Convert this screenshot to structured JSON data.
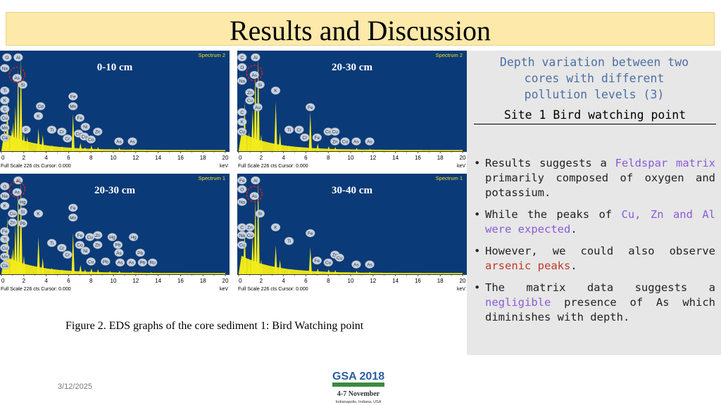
{
  "slide": {
    "title": "Results and Discussion",
    "date": "3/12/2025",
    "figure_caption": "Figure 2. EDS graphs of the core sediment 1: Bird Watching point"
  },
  "right_panel": {
    "heading_lines": [
      "Depth variation between two",
      "cores with different",
      "pollution levels (3)"
    ],
    "site": "Site 1 Bird watching point",
    "bullets": [
      {
        "segments": [
          {
            "text": "Results suggests a ",
            "style": "normal"
          },
          {
            "text": "Feldspar matrix",
            "style": "purple"
          },
          {
            "text": " primarily composed of oxygen and potassium.",
            "style": "normal"
          }
        ]
      },
      {
        "segments": [
          {
            "text": "While the peaks of ",
            "style": "normal"
          },
          {
            "text": "Cu, Zn and Al were expected",
            "style": "purple"
          },
          {
            "text": ".",
            "style": "normal"
          }
        ]
      },
      {
        "segments": [
          {
            "text": "However, we could also observe ",
            "style": "normal"
          },
          {
            "text": "arsenic peaks",
            "style": "red"
          },
          {
            "text": ".",
            "style": "normal"
          }
        ]
      },
      {
        "segments": [
          {
            "text": "The matrix data suggests a ",
            "style": "normal"
          },
          {
            "text": "negligible",
            "style": "purple"
          },
          {
            "text": " presence of As which diminishes with depth.",
            "style": "normal"
          }
        ]
      }
    ],
    "colors": {
      "purple": "#8a5bd6",
      "red": "#c0392b",
      "heading": "#4a6fa5"
    }
  },
  "logo": {
    "line1": "GSA 2018",
    "line2": "4-7 November",
    "line3": "Indianapolis, Indiana, USA",
    "color_green": "#3b8a3e",
    "color_blue": "#2b5f9e"
  },
  "chart_data": [
    {
      "type": "line",
      "title": "0-10 cm",
      "spectrum_label": "Spectrum 2",
      "xlabel": "keV",
      "footer": "Full Scale 226 cts Cursor: 0.000",
      "xlim": [
        0,
        20
      ],
      "x_ticks": [
        0,
        2,
        4,
        6,
        8,
        10,
        12,
        14,
        16,
        18,
        20
      ],
      "ylim": [
        0,
        226
      ],
      "peaks": [
        {
          "x": 0.28,
          "y": 60
        },
        {
          "x": 0.53,
          "y": 130
        },
        {
          "x": 0.93,
          "y": 55
        },
        {
          "x": 1.04,
          "y": 70
        },
        {
          "x": 1.25,
          "y": 110
        },
        {
          "x": 1.49,
          "y": 200
        },
        {
          "x": 1.74,
          "y": 226
        },
        {
          "x": 2.01,
          "y": 45
        },
        {
          "x": 2.31,
          "y": 35
        },
        {
          "x": 3.31,
          "y": 55
        },
        {
          "x": 3.69,
          "y": 40
        },
        {
          "x": 4.51,
          "y": 15
        },
        {
          "x": 5.41,
          "y": 12
        },
        {
          "x": 6.4,
          "y": 90
        },
        {
          "x": 7.06,
          "y": 20
        },
        {
          "x": 7.47,
          "y": 10
        },
        {
          "x": 8.04,
          "y": 14
        },
        {
          "x": 8.63,
          "y": 10
        },
        {
          "x": 10.54,
          "y": 8
        },
        {
          "x": 11.73,
          "y": 6
        }
      ],
      "element_labels": [
        {
          "text": "O",
          "x": 0.5,
          "level": 0.96
        },
        {
          "text": "Al",
          "x": 1.5,
          "level": 0.96
        },
        {
          "text": "Na",
          "x": 0.3,
          "level": 0.85
        },
        {
          "text": "As",
          "x": 1.4,
          "level": 0.75
        },
        {
          "text": "Si",
          "x": 1.9,
          "level": 0.68
        },
        {
          "text": "Ti",
          "x": 0.3,
          "level": 0.62
        },
        {
          "text": "K",
          "x": 0.3,
          "level": 0.52
        },
        {
          "text": "C",
          "x": 0.3,
          "level": 0.43
        },
        {
          "text": "Cu",
          "x": 0.3,
          "level": 0.34
        },
        {
          "text": "Mn",
          "x": 0.3,
          "level": 0.24
        },
        {
          "text": "Ca",
          "x": 0.3,
          "level": 0.14
        },
        {
          "text": "Cd",
          "x": 3.5,
          "level": 0.46
        },
        {
          "text": "K",
          "x": 3.3,
          "level": 0.36
        },
        {
          "text": "P",
          "x": 2.2,
          "level": 0.22
        },
        {
          "text": "Fe",
          "x": 6.4,
          "level": 0.56
        },
        {
          "text": "Mn",
          "x": 6.4,
          "level": 0.46
        },
        {
          "text": "Fe",
          "x": 7.0,
          "level": 0.34
        },
        {
          "text": "Ni",
          "x": 7.5,
          "level": 0.25
        },
        {
          "text": "Ti",
          "x": 4.5,
          "level": 0.22
        },
        {
          "text": "Cr",
          "x": 5.4,
          "level": 0.2
        },
        {
          "text": "Co",
          "x": 6.9,
          "level": 0.18
        },
        {
          "text": "Cu",
          "x": 7.4,
          "level": 0.15
        },
        {
          "text": "Cr",
          "x": 5.9,
          "level": 0.13
        },
        {
          "text": "Zn",
          "x": 8.6,
          "level": 0.2
        },
        {
          "text": "Cu",
          "x": 8.0,
          "level": 0.12
        },
        {
          "text": "As",
          "x": 10.5,
          "level": 0.1
        },
        {
          "text": "As",
          "x": 11.7,
          "level": 0.1
        }
      ],
      "circled_marker": {
        "x": 1.4,
        "level": 0.78
      }
    },
    {
      "type": "line",
      "title": "20-30 cm",
      "spectrum_label": "Spectrum 2",
      "xlabel": "keV",
      "footer": "Full Scale 226 cts Cursor: 0.000",
      "xlim": [
        0,
        20
      ],
      "x_ticks": [
        0,
        2,
        4,
        6,
        8,
        10,
        12,
        14,
        16,
        18,
        20
      ],
      "ylim": [
        0,
        226
      ],
      "peaks": [
        {
          "x": 0.28,
          "y": 50
        },
        {
          "x": 0.53,
          "y": 120
        },
        {
          "x": 0.93,
          "y": 45
        },
        {
          "x": 1.25,
          "y": 100
        },
        {
          "x": 1.49,
          "y": 190
        },
        {
          "x": 1.74,
          "y": 226
        },
        {
          "x": 2.01,
          "y": 40
        },
        {
          "x": 3.31,
          "y": 120
        },
        {
          "x": 3.69,
          "y": 45
        },
        {
          "x": 4.51,
          "y": 14
        },
        {
          "x": 5.41,
          "y": 10
        },
        {
          "x": 6.4,
          "y": 95
        },
        {
          "x": 7.06,
          "y": 18
        },
        {
          "x": 8.04,
          "y": 12
        },
        {
          "x": 8.63,
          "y": 10
        },
        {
          "x": 10.54,
          "y": 8
        },
        {
          "x": 11.73,
          "y": 6
        }
      ],
      "element_labels": [
        {
          "text": "C",
          "x": 0.3,
          "level": 0.96
        },
        {
          "text": "Al",
          "x": 1.5,
          "level": 0.96
        },
        {
          "text": "O",
          "x": 0.3,
          "level": 0.86
        },
        {
          "text": "As",
          "x": 1.4,
          "level": 0.78
        },
        {
          "text": "Na",
          "x": 0.3,
          "level": 0.72
        },
        {
          "text": "Si",
          "x": 1.9,
          "level": 0.68
        },
        {
          "text": "Zn",
          "x": 1.0,
          "level": 0.6
        },
        {
          "text": "Cu",
          "x": 1.0,
          "level": 0.52
        },
        {
          "text": "Au",
          "x": 1.7,
          "level": 0.45
        },
        {
          "text": "K",
          "x": 3.3,
          "level": 0.62
        },
        {
          "text": "Fe",
          "x": 6.4,
          "level": 0.45
        },
        {
          "text": "C",
          "x": 0.3,
          "level": 0.4
        },
        {
          "text": "K",
          "x": 0.3,
          "level": 0.3
        },
        {
          "text": "Cu",
          "x": 0.3,
          "level": 0.2
        },
        {
          "text": "Ti",
          "x": 4.5,
          "level": 0.22
        },
        {
          "text": "Cr",
          "x": 5.4,
          "level": 0.22
        },
        {
          "text": "Co",
          "x": 8.0,
          "level": 0.2
        },
        {
          "text": "Cr",
          "x": 5.9,
          "level": 0.14
        },
        {
          "text": "Fe",
          "x": 7.0,
          "level": 0.14
        },
        {
          "text": "Cu",
          "x": 8.6,
          "level": 0.2
        },
        {
          "text": "Zn",
          "x": 8.6,
          "level": 0.1
        },
        {
          "text": "Cu",
          "x": 9.5,
          "level": 0.1
        },
        {
          "text": "As",
          "x": 10.5,
          "level": 0.1
        },
        {
          "text": "As",
          "x": 11.7,
          "level": 0.1
        }
      ],
      "circled_marker": {
        "x": 1.4,
        "level": 0.8
      }
    },
    {
      "type": "line",
      "title": "20-30 cm",
      "spectrum_label": "Spectrum 1",
      "xlabel": "keV",
      "footer": "Full Scale 226 cts Cursor: 0.000",
      "xlim": [
        0,
        20
      ],
      "x_ticks": [
        0,
        2,
        4,
        6,
        8,
        10,
        12,
        14,
        16,
        18,
        20
      ],
      "ylim": [
        0,
        226
      ],
      "peaks": [
        {
          "x": 0.28,
          "y": 55
        },
        {
          "x": 0.53,
          "y": 140
        },
        {
          "x": 0.93,
          "y": 50
        },
        {
          "x": 1.04,
          "y": 65
        },
        {
          "x": 1.25,
          "y": 120
        },
        {
          "x": 1.49,
          "y": 210
        },
        {
          "x": 1.74,
          "y": 226
        },
        {
          "x": 2.01,
          "y": 45
        },
        {
          "x": 3.31,
          "y": 90
        },
        {
          "x": 3.69,
          "y": 40
        },
        {
          "x": 4.51,
          "y": 16
        },
        {
          "x": 5.41,
          "y": 12
        },
        {
          "x": 6.4,
          "y": 100
        },
        {
          "x": 7.06,
          "y": 22
        },
        {
          "x": 7.47,
          "y": 12
        },
        {
          "x": 8.04,
          "y": 14
        },
        {
          "x": 8.63,
          "y": 12
        },
        {
          "x": 9.71,
          "y": 8
        },
        {
          "x": 10.54,
          "y": 8
        },
        {
          "x": 11.73,
          "y": 6
        },
        {
          "x": 13.39,
          "y": 5
        }
      ],
      "element_labels": [
        {
          "text": "Al",
          "x": 1.5,
          "level": 0.96
        },
        {
          "text": "O",
          "x": 0.3,
          "level": 0.9
        },
        {
          "text": "Na",
          "x": 0.3,
          "level": 0.8
        },
        {
          "text": "As",
          "x": 1.4,
          "level": 0.84
        },
        {
          "text": "K",
          "x": 0.3,
          "level": 0.7
        },
        {
          "text": "Hg",
          "x": 1.9,
          "level": 0.74
        },
        {
          "text": "Cu",
          "x": 1.0,
          "level": 0.62
        },
        {
          "text": "Si",
          "x": 1.9,
          "level": 0.64
        },
        {
          "text": "Zn",
          "x": 1.0,
          "level": 0.53
        },
        {
          "text": "Pb",
          "x": 1.9,
          "level": 0.52
        },
        {
          "text": "K",
          "x": 3.3,
          "level": 0.62
        },
        {
          "text": "Fe",
          "x": 6.4,
          "level": 0.68
        },
        {
          "text": "Mn",
          "x": 6.4,
          "level": 0.58
        },
        {
          "text": "Fe",
          "x": 0.3,
          "level": 0.44
        },
        {
          "text": "Ti",
          "x": 0.3,
          "level": 0.36
        },
        {
          "text": "Cu",
          "x": 0.3,
          "level": 0.27
        },
        {
          "text": "Mn",
          "x": 0.3,
          "level": 0.18
        },
        {
          "text": "Ca",
          "x": 0.3,
          "level": 0.09
        },
        {
          "text": "Ti",
          "x": 4.5,
          "level": 0.32
        },
        {
          "text": "Cr",
          "x": 5.4,
          "level": 0.27
        },
        {
          "text": "Cr",
          "x": 5.9,
          "level": 0.2
        },
        {
          "text": "Fe",
          "x": 7.0,
          "level": 0.4
        },
        {
          "text": "Co",
          "x": 7.0,
          "level": 0.3
        },
        {
          "text": "Zn",
          "x": 8.6,
          "level": 0.4
        },
        {
          "text": "Cu",
          "x": 7.9,
          "level": 0.38
        },
        {
          "text": "Ni",
          "x": 7.5,
          "level": 0.24
        },
        {
          "text": "Zn",
          "x": 8.6,
          "level": 0.3
        },
        {
          "text": "Hg",
          "x": 9.9,
          "level": 0.38
        },
        {
          "text": "Pb",
          "x": 10.4,
          "level": 0.3
        },
        {
          "text": "Hg",
          "x": 11.8,
          "level": 0.38
        },
        {
          "text": "As",
          "x": 10.5,
          "level": 0.22
        },
        {
          "text": "Pb",
          "x": 12.4,
          "level": 0.22
        },
        {
          "text": "Cu",
          "x": 8.0,
          "level": 0.13
        },
        {
          "text": "Pb",
          "x": 9.3,
          "level": 0.13
        },
        {
          "text": "As",
          "x": 10.6,
          "level": 0.12
        },
        {
          "text": "Pb",
          "x": 12.6,
          "level": 0.12
        },
        {
          "text": "As",
          "x": 11.6,
          "level": 0.12
        },
        {
          "text": "Ru",
          "x": 13.5,
          "level": 0.12
        }
      ],
      "circled_marker": {
        "x": 1.4,
        "level": 0.87
      }
    },
    {
      "type": "line",
      "title": "30-40 cm",
      "spectrum_label": "Spectrum 1",
      "xlabel": "keV",
      "footer": "Full Scale 226 cts Cursor: 0.000",
      "xlim": [
        0,
        20
      ],
      "x_ticks": [
        0,
        2,
        4,
        6,
        8,
        10,
        12,
        14,
        16,
        18,
        20
      ],
      "ylim": [
        0,
        226
      ],
      "peaks": [
        {
          "x": 0.28,
          "y": 40
        },
        {
          "x": 0.53,
          "y": 110
        },
        {
          "x": 0.93,
          "y": 40
        },
        {
          "x": 1.25,
          "y": 95
        },
        {
          "x": 1.49,
          "y": 180
        },
        {
          "x": 1.74,
          "y": 226
        },
        {
          "x": 2.01,
          "y": 35
        },
        {
          "x": 3.31,
          "y": 70
        },
        {
          "x": 3.69,
          "y": 35
        },
        {
          "x": 4.51,
          "y": 12
        },
        {
          "x": 6.4,
          "y": 65
        },
        {
          "x": 7.06,
          "y": 14
        },
        {
          "x": 8.04,
          "y": 12
        },
        {
          "x": 8.63,
          "y": 10
        },
        {
          "x": 10.54,
          "y": 8
        },
        {
          "x": 11.73,
          "y": 6
        }
      ],
      "element_labels": [
        {
          "text": "Fe",
          "x": 0.3,
          "level": 0.96
        },
        {
          "text": "Al",
          "x": 1.5,
          "level": 0.96
        },
        {
          "text": "O",
          "x": 0.3,
          "level": 0.87
        },
        {
          "text": "As",
          "x": 1.4,
          "level": 0.8
        },
        {
          "text": "Na",
          "x": 0.3,
          "level": 0.74
        },
        {
          "text": "Si",
          "x": 1.9,
          "level": 0.62
        },
        {
          "text": "C",
          "x": 0.3,
          "level": 0.48
        },
        {
          "text": "Zn",
          "x": 1.0,
          "level": 0.48
        },
        {
          "text": "Cu",
          "x": 1.0,
          "level": 0.4
        },
        {
          "text": "Na",
          "x": 0.3,
          "level": 0.4
        },
        {
          "text": "K",
          "x": 3.3,
          "level": 0.48
        },
        {
          "text": "Fe",
          "x": 6.4,
          "level": 0.42
        },
        {
          "text": "Ti",
          "x": 4.5,
          "level": 0.34
        },
        {
          "text": "Zn",
          "x": 8.6,
          "level": 0.2
        },
        {
          "text": "Cu",
          "x": 9.0,
          "level": 0.17
        },
        {
          "text": "Fe",
          "x": 7.0,
          "level": 0.14
        },
        {
          "text": "Cu",
          "x": 8.0,
          "level": 0.12
        },
        {
          "text": "Cu",
          "x": 0.3,
          "level": 0.3
        },
        {
          "text": "As",
          "x": 10.5,
          "level": 0.1
        },
        {
          "text": "As",
          "x": 11.7,
          "level": 0.1
        }
      ],
      "circled_marker": {
        "x": 1.4,
        "level": 0.82
      }
    }
  ]
}
